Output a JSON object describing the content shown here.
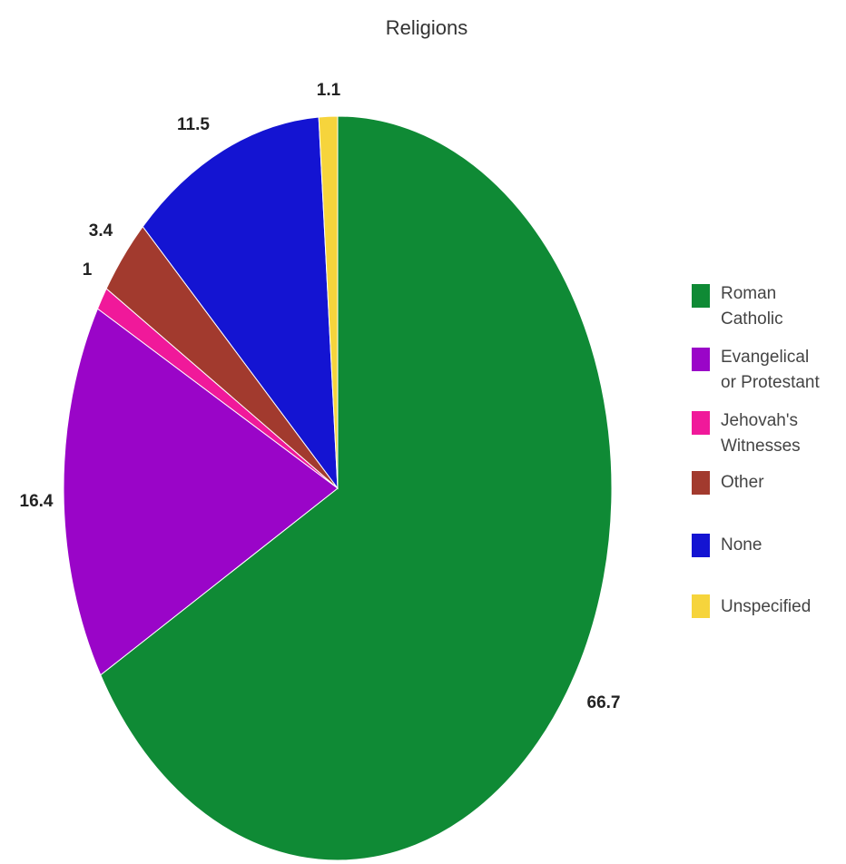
{
  "chart_data": {
    "type": "pie",
    "title": "Religions",
    "start_angle_deg": 0,
    "direction": "clockwise",
    "slices": [
      {
        "label": "Roman Catholic",
        "value": 66.7,
        "color": "#0f8a35",
        "data_label": "66.7"
      },
      {
        "label": "Evangelical or Protestant",
        "value": 16.4,
        "color": "#9a05c8",
        "data_label": "16.4"
      },
      {
        "label": "Jehovah's Witnesses",
        "value": 1.0,
        "color": "#f0199a",
        "data_label": "1"
      },
      {
        "label": "Other",
        "value": 3.4,
        "color": "#a23a2e",
        "data_label": "3.4"
      },
      {
        "label": "None",
        "value": 11.5,
        "color": "#1414d2",
        "data_label": "11.5"
      },
      {
        "label": "Unspecified",
        "value": 1.1,
        "color": "#f6d43c",
        "data_label": "1.1"
      }
    ],
    "legend": {
      "position": "right",
      "entries": [
        {
          "lines": [
            "Roman",
            "Catholic"
          ],
          "color": "#0f8a35"
        },
        {
          "lines": [
            "Evangelical",
            "or Protestant"
          ],
          "color": "#9a05c8"
        },
        {
          "lines": [
            "Jehovah's",
            "Witnesses"
          ],
          "color": "#f0199a"
        },
        {
          "lines": [
            "Other"
          ],
          "color": "#a23a2e"
        },
        {
          "lines": [
            "None"
          ],
          "color": "#1414d2"
        },
        {
          "lines": [
            "Unspecified"
          ],
          "color": "#f6d43c"
        }
      ]
    }
  }
}
